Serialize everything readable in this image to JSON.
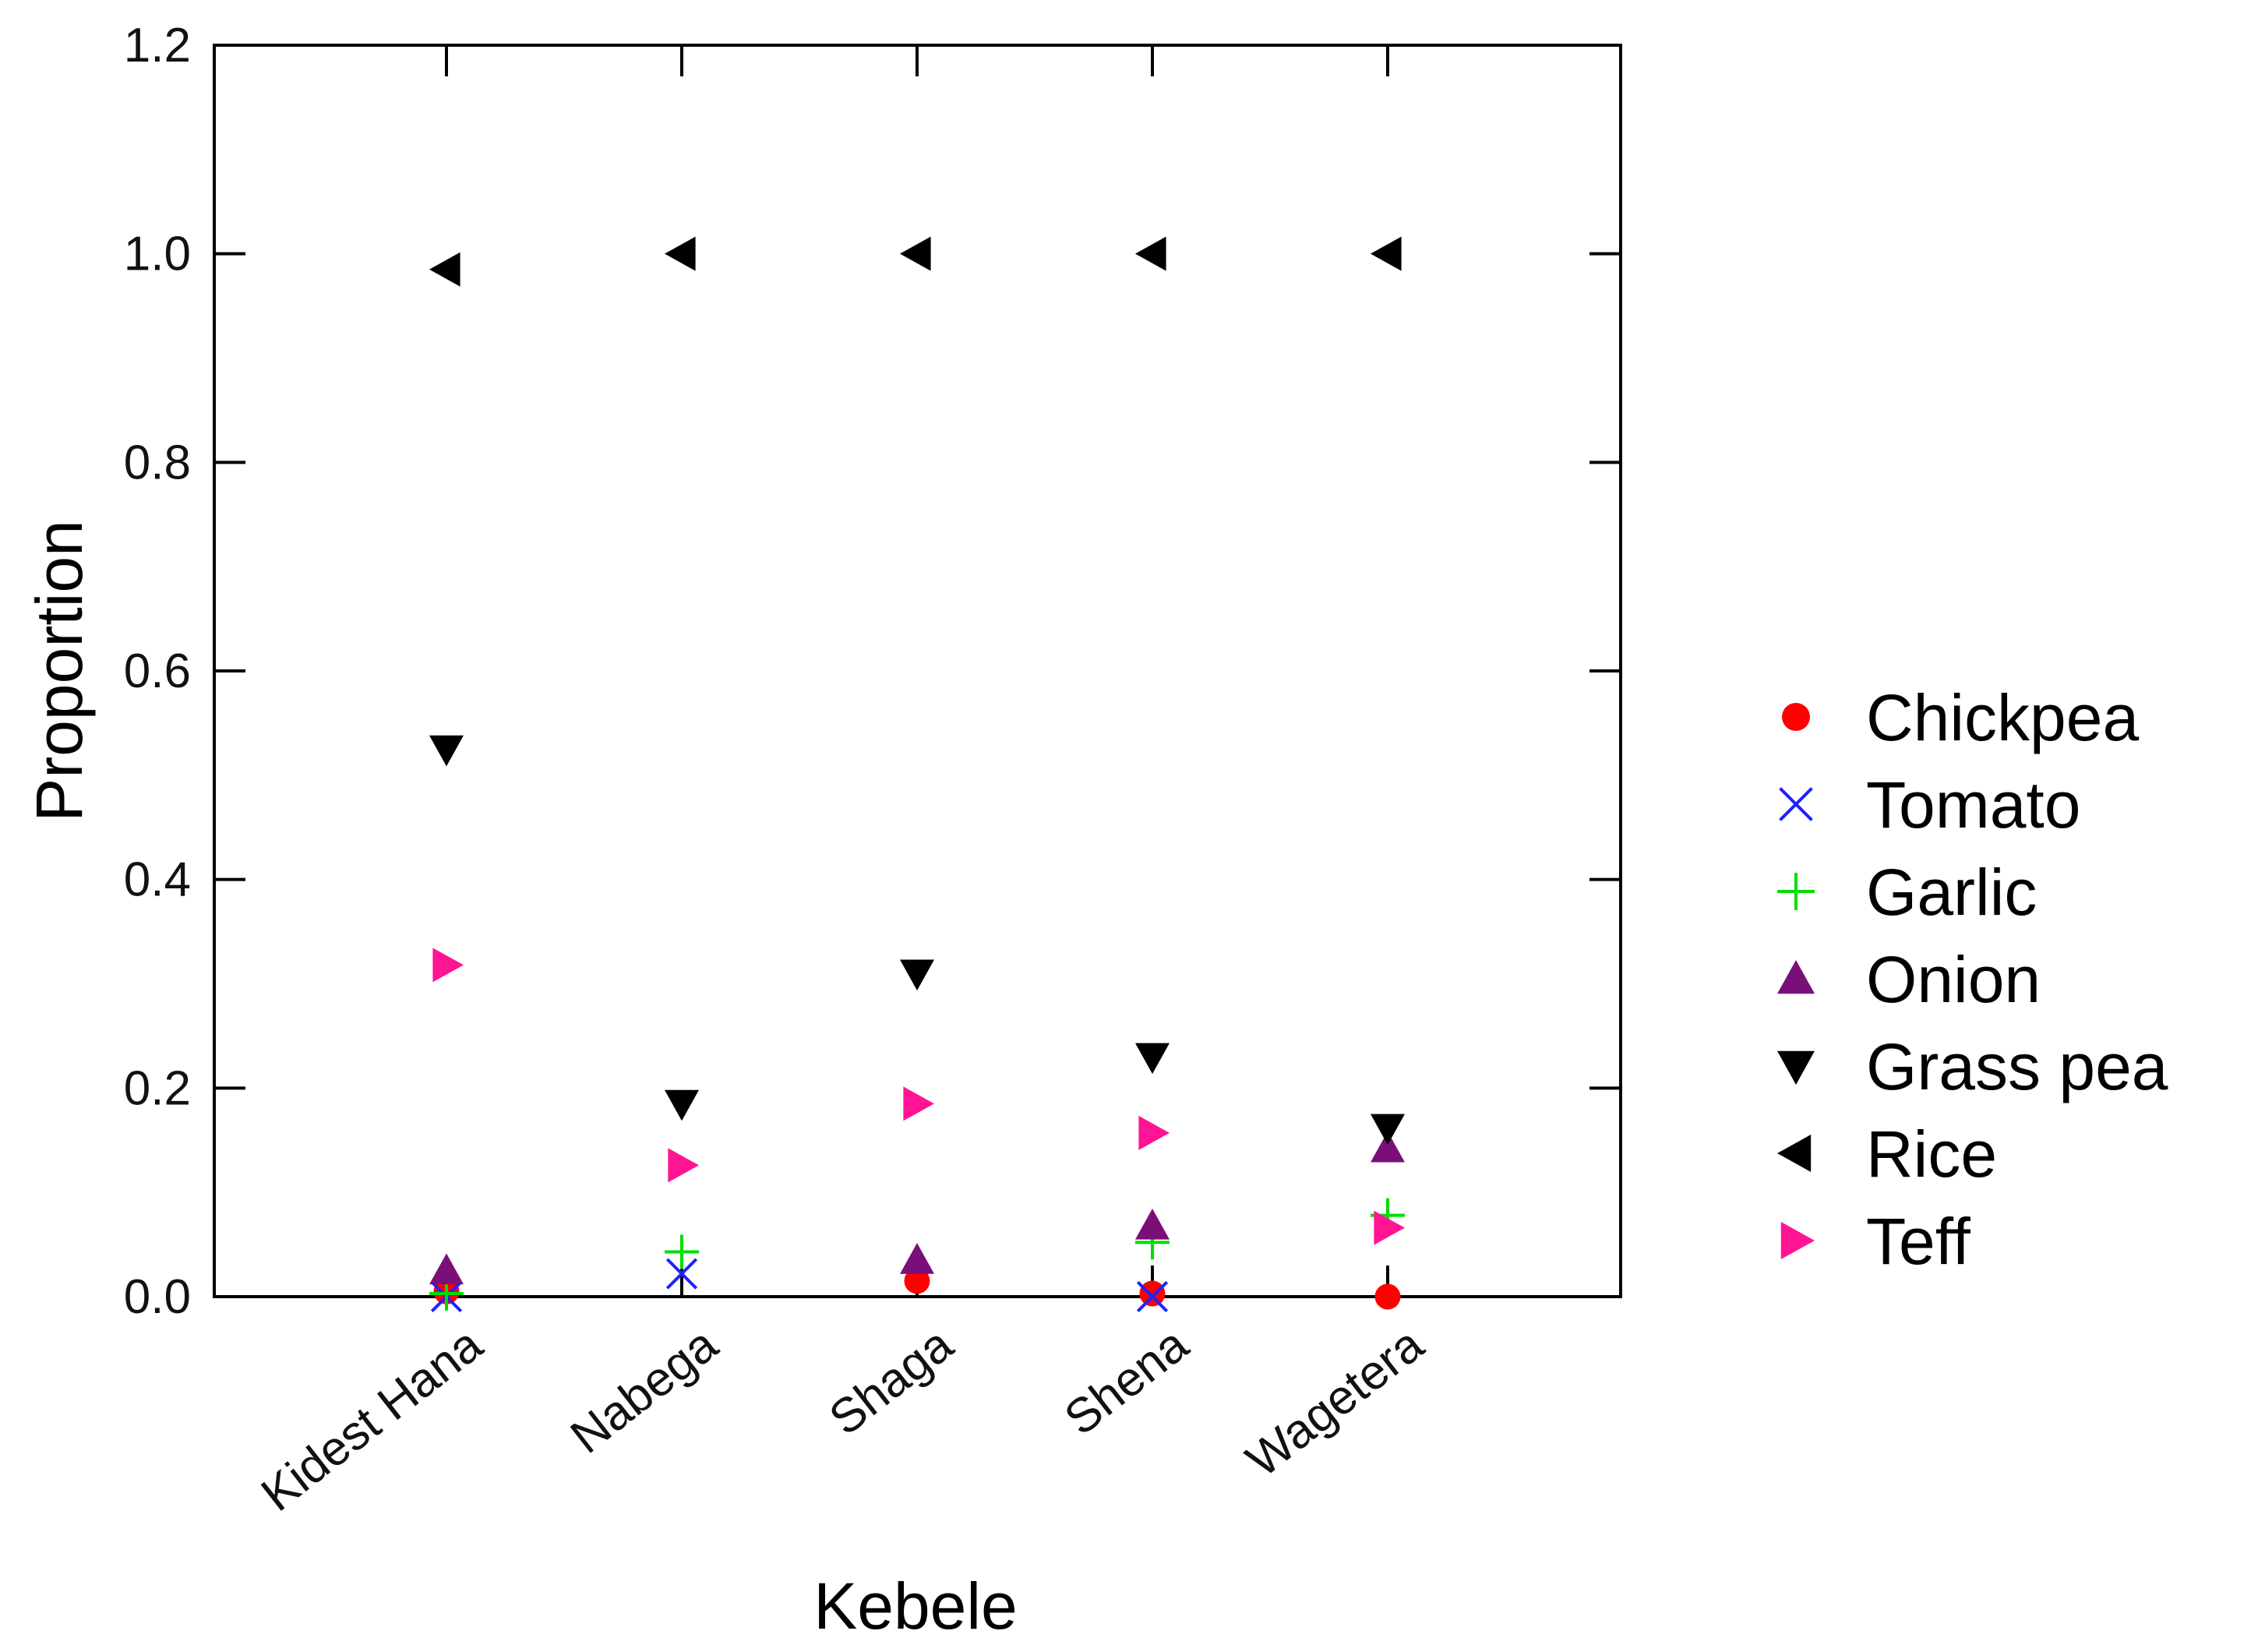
{
  "chart_data": {
    "type": "scatter",
    "xlabel": "Kebele",
    "ylabel": "Proportion",
    "categories": [
      "Kidest Hana",
      "Nabega",
      "Shaga",
      "Shena",
      "Wagetera"
    ],
    "ylim": [
      0.0,
      1.2
    ],
    "yticks": [
      "0.0",
      "0.2",
      "0.4",
      "0.6",
      "0.8",
      "1.0",
      "1.2"
    ],
    "legend_position": "right",
    "series": [
      {
        "name": "Chickpea",
        "marker": "circle",
        "color": "#ff0000",
        "values": [
          0.005,
          null,
          0.015,
          0.003,
          0.0
        ]
      },
      {
        "name": "Tomato",
        "marker": "x",
        "color": "#2020ff",
        "values": [
          0.0,
          0.022,
          null,
          0.0,
          null
        ]
      },
      {
        "name": "Garlic",
        "marker": "plus",
        "color": "#00dd00",
        "values": [
          0.003,
          0.043,
          null,
          0.052,
          0.078
        ]
      },
      {
        "name": "Onion",
        "marker": "triangle-up",
        "color": "#7a0f7a",
        "values": [
          0.025,
          null,
          0.035,
          0.068,
          0.142
        ]
      },
      {
        "name": "Grass pea",
        "marker": "triangle-down",
        "color": "#000000",
        "values": [
          0.525,
          0.185,
          0.31,
          0.23,
          0.162
        ]
      },
      {
        "name": "Rice",
        "marker": "triangle-left",
        "color": "#000000",
        "values": [
          0.985,
          1.0,
          1.0,
          1.0,
          1.0
        ]
      },
      {
        "name": "Teff",
        "marker": "triangle-right",
        "color": "#ff1493",
        "values": [
          0.318,
          0.126,
          0.185,
          0.157,
          0.066
        ]
      }
    ]
  }
}
